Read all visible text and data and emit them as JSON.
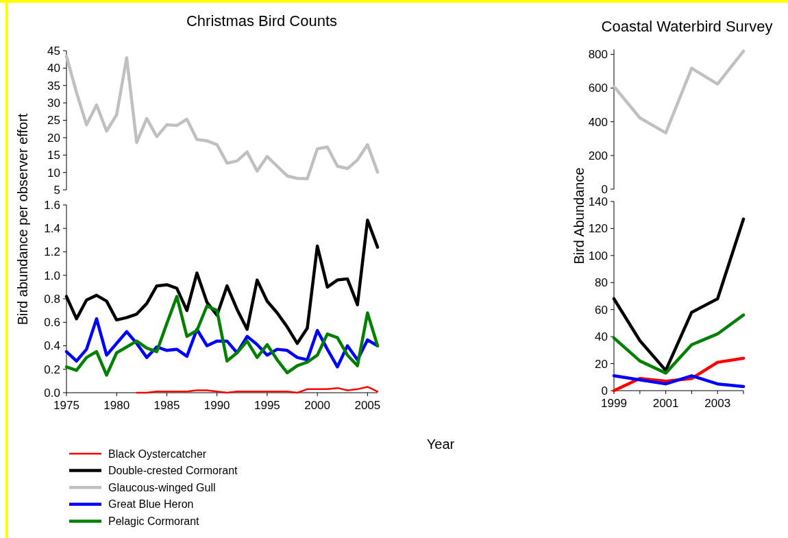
{
  "chart_data": [
    {
      "type": "line",
      "title": "Christmas Bird Counts",
      "x": [
        1975,
        1976,
        1977,
        1978,
        1979,
        1980,
        1981,
        1982,
        1983,
        1984,
        1985,
        1986,
        1987,
        1988,
        1989,
        1990,
        1991,
        1992,
        1993,
        1994,
        1995,
        1996,
        1997,
        1998,
        1999,
        2000,
        2001,
        2002,
        2003,
        2004,
        2005,
        2006
      ],
      "ylim": [
        5,
        45
      ],
      "yticks": [
        5,
        10,
        15,
        20,
        25,
        30,
        35,
        40,
        45
      ],
      "tick_labels": "y",
      "legend": "bottom",
      "grid": false,
      "series": [
        {
          "name": "Glaucous-winged Gull",
          "color": "#c0c0c0",
          "values": [
            43.4,
            33,
            23.7,
            29.4,
            21.9,
            26.6,
            43.0,
            18.6,
            25.5,
            20.3,
            23.7,
            23.5,
            25.3,
            19.5,
            19.1,
            18.0,
            12.7,
            13.3,
            15.9,
            10.4,
            14.6,
            11.8,
            9.0,
            8.3,
            8.2,
            16.8,
            17.3,
            11.8,
            11.1,
            13.6,
            18.0,
            10.1
          ]
        }
      ]
    },
    {
      "type": "line",
      "xlabel": "Year",
      "ylabel": "Bird abundance per observer effort",
      "x": [
        1975,
        1976,
        1977,
        1978,
        1979,
        1980,
        1981,
        1982,
        1983,
        1984,
        1985,
        1986,
        1987,
        1988,
        1989,
        1990,
        1991,
        1992,
        1993,
        1994,
        1995,
        1996,
        1997,
        1998,
        1999,
        2000,
        2001,
        2002,
        2003,
        2004,
        2005,
        2006
      ],
      "xlim": [
        1975,
        2006
      ],
      "xticks": [
        1975,
        1980,
        1985,
        1990,
        1995,
        2000,
        2005
      ],
      "ylim": [
        0,
        1.6
      ],
      "yticks": [
        {
          "value": 0,
          "label": "0.0"
        },
        0.2,
        0.4,
        0.6,
        0.8,
        {
          "value": 1,
          "label": "1.0"
        },
        1.2,
        1.4,
        1.6
      ],
      "legend": "bottom",
      "grid": false,
      "series": [
        {
          "name": "Black Oystercatcher",
          "color": "#ff0000",
          "values": [
            null,
            null,
            null,
            null,
            null,
            null,
            null,
            0.0,
            0.0,
            0.01,
            0.01,
            0.01,
            0.01,
            0.02,
            0.02,
            0.01,
            0.0,
            0.01,
            0.01,
            0.01,
            0.01,
            0.01,
            0.01,
            0.0,
            0.03,
            0.03,
            0.03,
            0.04,
            0.02,
            0.03,
            0.05,
            0.01
          ]
        },
        {
          "name": "Double-crested Cormorant",
          "color": "#000000",
          "values": [
            0.82,
            0.63,
            0.79,
            0.83,
            0.78,
            0.62,
            0.64,
            0.67,
            0.76,
            0.91,
            0.92,
            0.89,
            0.7,
            1.02,
            0.77,
            0.66,
            0.91,
            0.71,
            0.54,
            0.96,
            0.78,
            0.68,
            0.56,
            0.42,
            0.55,
            1.25,
            0.9,
            0.96,
            0.97,
            0.75,
            1.47,
            1.24
          ]
        },
        {
          "name": "Great Blue Heron",
          "color": "#0000ff",
          "values": [
            0.35,
            0.27,
            0.37,
            0.63,
            0.32,
            0.42,
            0.52,
            0.42,
            0.3,
            0.39,
            0.36,
            0.37,
            0.31,
            0.54,
            0.4,
            0.44,
            0.44,
            0.34,
            0.48,
            0.41,
            0.32,
            0.37,
            0.36,
            0.3,
            0.28,
            0.53,
            0.37,
            0.22,
            0.4,
            0.28,
            0.45,
            0.4
          ]
        },
        {
          "name": "Pelagic Cormorant",
          "color": "#008000",
          "values": [
            0.22,
            0.19,
            0.3,
            0.35,
            0.15,
            0.34,
            0.39,
            0.44,
            0.38,
            0.35,
            0.59,
            0.82,
            0.48,
            0.53,
            0.74,
            0.7,
            0.27,
            0.34,
            0.44,
            0.3,
            0.41,
            0.28,
            0.17,
            0.23,
            0.26,
            0.32,
            0.5,
            0.47,
            0.32,
            0.23,
            0.68,
            0.4
          ]
        }
      ]
    },
    {
      "type": "line",
      "title": "Coastal Waterbird Survey",
      "x": [
        1999,
        2000,
        2001,
        2002,
        2003,
        2004
      ],
      "ylim": [
        0,
        830
      ],
      "yticks": [
        0,
        200,
        400,
        600,
        800
      ],
      "tick_labels": "y",
      "grid": false,
      "series": [
        {
          "color": "#c0c0c0",
          "values": [
            610,
            423,
            334,
            718,
            624,
            819
          ]
        }
      ]
    },
    {
      "type": "line",
      "ylabel": "Bird Abundance",
      "x": [
        1999,
        2000,
        2001,
        2002,
        2003,
        2004
      ],
      "xlim": [
        1999,
        2004
      ],
      "xticks": [
        1999,
        {
          "value": 2000,
          "label": null
        },
        2001,
        {
          "value": 2002,
          "label": null
        },
        2003,
        {
          "value": 2004,
          "label": null
        }
      ],
      "ylim": [
        0,
        140
      ],
      "yticks": [
        0,
        20,
        40,
        60,
        80,
        100,
        120,
        140
      ],
      "grid": false,
      "series": [
        {
          "color": "#ff0000",
          "values": [
            0,
            9,
            7,
            9,
            21,
            24
          ]
        },
        {
          "color": "#000000",
          "values": [
            68,
            37,
            15,
            58,
            68,
            127
          ]
        },
        {
          "color": "#0000ff",
          "values": [
            11,
            8,
            5,
            11,
            5,
            3
          ]
        },
        {
          "color": "#008000",
          "values": [
            39,
            22,
            13,
            34,
            42,
            56
          ]
        }
      ]
    }
  ]
}
